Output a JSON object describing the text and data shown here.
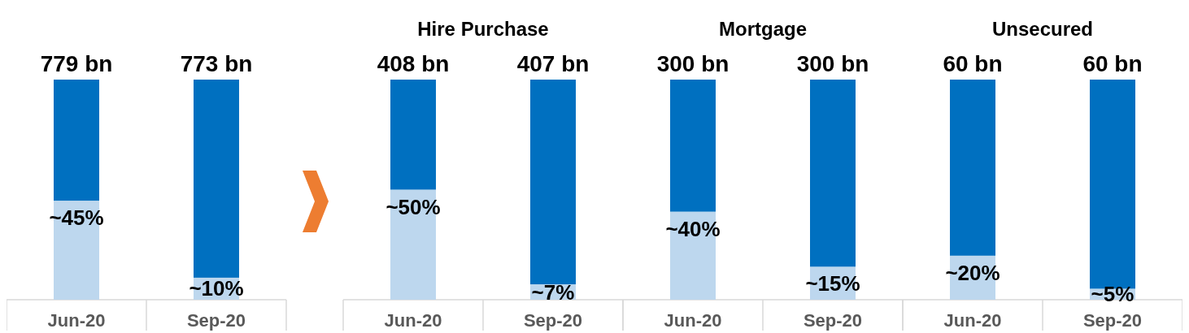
{
  "chart_data": [
    {
      "type": "bar",
      "stacked": true,
      "categories": [
        "Jun-20",
        "Sep-20"
      ],
      "series": [
        {
          "color": "#bdd7ee",
          "values": [
            45,
            10
          ],
          "value_labels": [
            "~45%",
            "~10%"
          ]
        },
        {
          "color": "#0070c0",
          "values": [
            55,
            90
          ]
        }
      ],
      "annotations": [
        {
          "text": "779 bn",
          "x": "Jun-20",
          "y": 100
        },
        {
          "text": "773 bn",
          "x": "Sep-20",
          "y": 100
        }
      ]
    },
    {
      "type": "bar",
      "stacked": true,
      "title": "Hire Purchase",
      "categories": [
        "Jun-20",
        "Sep-20"
      ],
      "series": [
        {
          "color": "#bdd7ee",
          "values": [
            50,
            7
          ],
          "value_labels": [
            "~50%",
            "~7%"
          ]
        },
        {
          "color": "#0070c0",
          "values": [
            50,
            93
          ]
        }
      ],
      "annotations": [
        {
          "text": "408 bn",
          "x": "Jun-20",
          "y": 100
        },
        {
          "text": "407 bn",
          "x": "Sep-20",
          "y": 100
        }
      ]
    },
    {
      "type": "bar",
      "stacked": true,
      "title": "Mortgage",
      "categories": [
        "Jun-20",
        "Sep-20"
      ],
      "series": [
        {
          "color": "#bdd7ee",
          "values": [
            40,
            15
          ],
          "value_labels": [
            "~40%",
            "~15%"
          ]
        },
        {
          "color": "#0070c0",
          "values": [
            60,
            85
          ]
        }
      ],
      "annotations": [
        {
          "text": "300 bn",
          "x": "Jun-20",
          "y": 100
        },
        {
          "text": "300 bn",
          "x": "Sep-20",
          "y": 100
        }
      ]
    },
    {
      "type": "bar",
      "stacked": true,
      "title": "Unsecured",
      "categories": [
        "Jun-20",
        "Sep-20"
      ],
      "series": [
        {
          "color": "#bdd7ee",
          "values": [
            20,
            5
          ],
          "value_labels": [
            "~20%",
            "~5%"
          ]
        },
        {
          "color": "#0070c0",
          "values": [
            80,
            95
          ]
        }
      ],
      "annotations": [
        {
          "text": "60 bn",
          "x": "Jun-20",
          "y": 100
        },
        {
          "text": "60 bn",
          "x": "Sep-20",
          "y": 100
        }
      ]
    }
  ]
}
